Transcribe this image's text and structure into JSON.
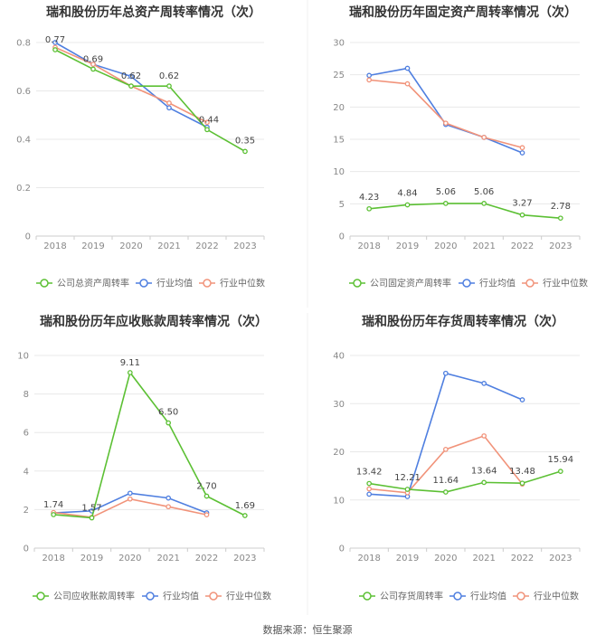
{
  "colors": {
    "company": "#5cc034",
    "industry_avg": "#4f7fe0",
    "industry_median": "#f1937a",
    "grid": "#e8e8e8",
    "axis": "#cccccc"
  },
  "source": "数据来源：恒生聚源",
  "chart_data": [
    {
      "type": "line",
      "title": "瑞和股份历年总资产周转率情况（次）",
      "x": [
        "2018",
        "2019",
        "2020",
        "2021",
        "2022",
        "2023"
      ],
      "ylim": [
        0,
        0.8
      ],
      "yticks": [
        "0",
        "0.2",
        "0.4",
        "0.6",
        "0.8"
      ],
      "series": [
        {
          "name": "公司总资产周转率",
          "role": "company",
          "values": [
            0.77,
            0.69,
            0.62,
            0.62,
            0.44,
            0.35
          ],
          "labels": [
            "0.77",
            "0.69",
            "0.62",
            "0.62",
            "0.44",
            "0.35"
          ]
        },
        {
          "name": "行业均值",
          "role": "industry_avg",
          "values": [
            0.8,
            0.71,
            0.66,
            0.53,
            0.45,
            null
          ]
        },
        {
          "name": "行业中位数",
          "role": "industry_median",
          "values": [
            0.78,
            0.71,
            0.62,
            0.55,
            0.47,
            null
          ]
        }
      ]
    },
    {
      "type": "line",
      "title": "瑞和股份历年固定资产周转率情况（次）",
      "x": [
        "2018",
        "2019",
        "2020",
        "2021",
        "2022",
        "2023"
      ],
      "ylim": [
        0,
        30
      ],
      "yticks": [
        "0",
        "5",
        "10",
        "15",
        "20",
        "25",
        "30"
      ],
      "series": [
        {
          "name": "公司固定资产周转率",
          "role": "company",
          "values": [
            4.23,
            4.84,
            5.06,
            5.06,
            3.27,
            2.78
          ],
          "labels": [
            "4.23",
            "4.84",
            "5.06",
            "5.06",
            "3.27",
            "2.78"
          ]
        },
        {
          "name": "行业均值",
          "role": "industry_avg",
          "values": [
            24.9,
            26.0,
            17.3,
            15.3,
            12.9,
            null
          ]
        },
        {
          "name": "行业中位数",
          "role": "industry_median",
          "values": [
            24.2,
            23.6,
            17.5,
            15.3,
            13.7,
            null
          ]
        }
      ]
    },
    {
      "type": "line",
      "title": "瑞和股份历年应收账款周转率情况（次）",
      "x": [
        "2018",
        "2019",
        "2020",
        "2021",
        "2022",
        "2023"
      ],
      "ylim": [
        0,
        10
      ],
      "yticks": [
        "0",
        "2",
        "4",
        "6",
        "8",
        "10"
      ],
      "series": [
        {
          "name": "公司应收账款周转率",
          "role": "company",
          "values": [
            1.74,
            1.57,
            9.11,
            6.5,
            2.7,
            1.69
          ],
          "labels": [
            "1.74",
            "1.57",
            "9.11",
            "6.50",
            "2.70",
            "1.69"
          ]
        },
        {
          "name": "行业均值",
          "role": "industry_avg",
          "values": [
            1.83,
            1.93,
            2.85,
            2.6,
            1.83,
            null
          ]
        },
        {
          "name": "行业中位数",
          "role": "industry_median",
          "values": [
            1.85,
            1.6,
            2.55,
            2.15,
            1.73,
            null
          ]
        }
      ]
    },
    {
      "type": "line",
      "title": "瑞和股份历年存货周转率情况（次）",
      "x": [
        "2018",
        "2019",
        "2020",
        "2021",
        "2022",
        "2023"
      ],
      "ylim": [
        0,
        40
      ],
      "yticks": [
        "0",
        "10",
        "20",
        "30",
        "40"
      ],
      "series": [
        {
          "name": "公司存货周转率",
          "role": "company",
          "values": [
            13.42,
            12.21,
            11.64,
            13.64,
            13.48,
            15.94
          ],
          "labels": [
            "13.42",
            "12.21",
            "11.64",
            "13.64",
            "13.48",
            "15.94"
          ]
        },
        {
          "name": "行业均值",
          "role": "industry_avg",
          "values": [
            11.2,
            10.7,
            36.3,
            34.2,
            30.8,
            null
          ]
        },
        {
          "name": "行业中位数",
          "role": "industry_median",
          "values": [
            12.3,
            11.5,
            20.5,
            23.3,
            13.3,
            null
          ]
        }
      ]
    }
  ]
}
